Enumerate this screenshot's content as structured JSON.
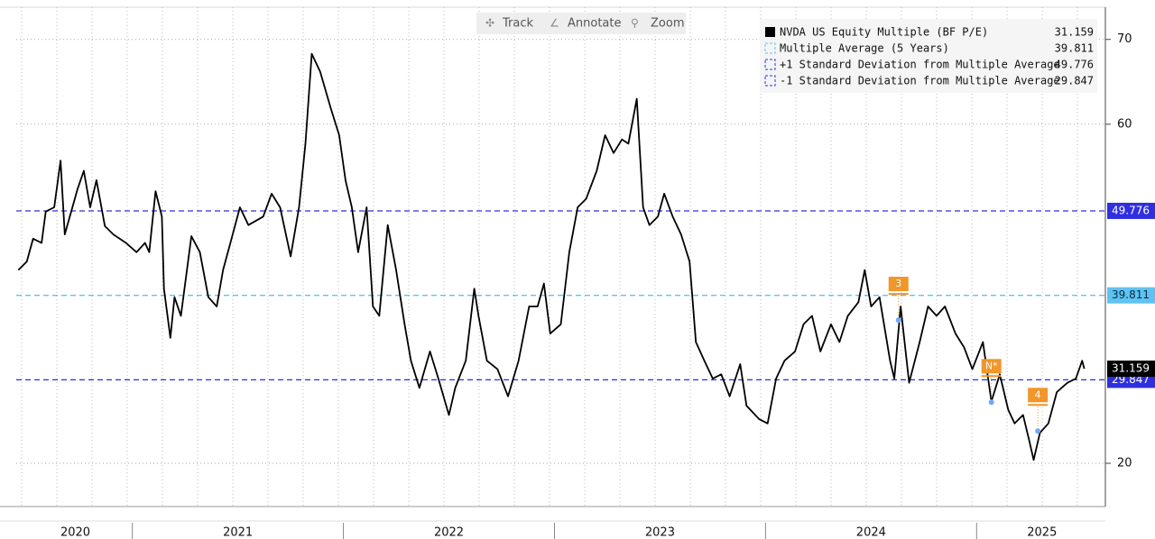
{
  "toolbar": [
    "Track",
    "Annotate",
    "Zoom"
  ],
  "chart_data": {
    "type": "line",
    "series": [
      {
        "name": "NVDA US Equity Multiple (BF P/E)",
        "color": "#000000",
        "last_value": 31.159,
        "x": [
          2020.46,
          2020.5,
          2020.53,
          2020.57,
          2020.59,
          2020.63,
          2020.66,
          2020.68,
          2020.74,
          2020.77,
          2020.8,
          2020.83,
          2020.87,
          2020.91,
          2020.97,
          2021.02,
          2021.06,
          2021.08,
          2021.11,
          2021.14,
          2021.15,
          2021.18,
          2021.2,
          2021.23,
          2021.28,
          2021.32,
          2021.36,
          2021.4,
          2021.43,
          2021.47,
          2021.51,
          2021.55,
          2021.62,
          2021.66,
          2021.7,
          2021.75,
          2021.79,
          2021.82,
          2021.85,
          2021.89,
          2021.94,
          2021.98,
          2022.01,
          2022.04,
          2022.07,
          2022.11,
          2022.14,
          2022.17,
          2022.21,
          2022.25,
          2022.29,
          2022.32,
          2022.36,
          2022.41,
          2022.45,
          2022.5,
          2022.53,
          2022.58,
          2022.62,
          2022.64,
          2022.68,
          2022.73,
          2022.78,
          2022.83,
          2022.88,
          2022.92,
          2022.95,
          2022.98,
          2023.03,
          2023.07,
          2023.11,
          2023.15,
          2023.2,
          2023.24,
          2023.28,
          2023.32,
          2023.35,
          2023.39,
          2023.42,
          2023.45,
          2023.49,
          2023.52,
          2023.56,
          2023.6,
          2023.64,
          2023.67,
          2023.71,
          2023.75,
          2023.79,
          2023.83,
          2023.88,
          2023.91,
          2023.97,
          2024.01,
          2024.05,
          2024.09,
          2024.14,
          2024.18,
          2024.22,
          2024.26,
          2024.31,
          2024.35,
          2024.39,
          2024.44,
          2024.47,
          2024.5,
          2024.54,
          2024.59,
          2024.61,
          2024.64,
          2024.68,
          2024.73,
          2024.77,
          2024.81,
          2024.85,
          2024.9,
          2024.94,
          2024.98,
          2025.03,
          2025.07,
          2025.11,
          2025.15,
          2025.18,
          2025.22,
          2025.25,
          2025.27,
          2025.3,
          2025.34,
          2025.38,
          2025.43,
          2025.47,
          2025.5,
          2025.51
        ],
        "values": [
          42.8,
          43.8,
          46.5,
          46,
          49.7,
          50.2,
          55.7,
          47,
          52.3,
          54.5,
          50.2,
          53.4,
          48,
          47,
          46,
          44.9,
          46,
          44.9,
          52.1,
          49.1,
          40.6,
          34.8,
          39.6,
          37.4,
          46.8,
          44.9,
          39.6,
          38.5,
          42.8,
          46.5,
          50.2,
          48.1,
          49.1,
          51.8,
          50.2,
          44.4,
          50.2,
          57.7,
          68.3,
          66.2,
          61.9,
          58.7,
          53.4,
          50.2,
          44.9,
          50.2,
          38.5,
          37.4,
          48.1,
          42.8,
          36.4,
          32.1,
          28.9,
          33.2,
          30,
          25.7,
          28.9,
          32.1,
          40.6,
          37.4,
          32.1,
          31.1,
          27.9,
          32.1,
          38.5,
          38.5,
          41.2,
          35.3,
          36.4,
          44.9,
          50.2,
          51.2,
          54.5,
          58.7,
          56.6,
          58.2,
          57.7,
          63,
          50.2,
          48.1,
          49.1,
          51.8,
          49.1,
          47,
          43.8,
          34.3,
          32.1,
          30,
          30.5,
          27.9,
          31.7,
          26.8,
          25.2,
          24.7,
          30,
          32.1,
          33.2,
          36.4,
          37.4,
          33.2,
          36.4,
          34.3,
          37.4,
          39,
          42.8,
          38.5,
          39.6,
          32.1,
          30,
          38.5,
          29.5,
          34.3,
          38.5,
          37.4,
          38.5,
          35.3,
          33.7,
          31.1,
          34.3,
          27.3,
          30.5,
          26.3,
          24.7,
          25.7,
          22.6,
          20.4,
          23.6,
          24.7,
          28.4,
          29.5,
          30,
          32.1,
          31.159
        ]
      }
    ],
    "reference_lines": [
      {
        "name": "Multiple Average (5 Years)",
        "value": 39.811,
        "color": "#5ec3f2",
        "text_color": "#0a2a40"
      },
      {
        "name": "+1 Standard Deviation from Multiple Average",
        "value": 49.776,
        "color": "#2f2fe0",
        "text_color": "#ffffff"
      },
      {
        "name": "-1 Standard Deviation from Multiple Average",
        "value": 29.847,
        "color": "#2f2fe0",
        "text_color": "#ffffff"
      }
    ],
    "annotations": [
      {
        "label": "3",
        "x": 2024.63,
        "y": 36.9
      },
      {
        "label": "N*",
        "x": 2025.07,
        "y": 27.2
      },
      {
        "label": "4",
        "x": 2025.29,
        "y": 23.8
      }
    ],
    "xlim": [
      2020.45,
      2025.61
    ],
    "xticks": [
      {
        "value": 2020.73,
        "label": "2020"
      },
      {
        "value": 2021.5,
        "label": "2021"
      },
      {
        "value": 2022.5,
        "label": "2022"
      },
      {
        "value": 2023.5,
        "label": "2023"
      },
      {
        "value": 2024.5,
        "label": "2024"
      },
      {
        "value": 2025.31,
        "label": "2025"
      }
    ],
    "xminorticks": [
      2021,
      2022,
      2023,
      2024,
      2025
    ],
    "ylim": [
      14.9,
      73.8
    ],
    "yticks": [
      20,
      60,
      70
    ],
    "grid": true
  }
}
